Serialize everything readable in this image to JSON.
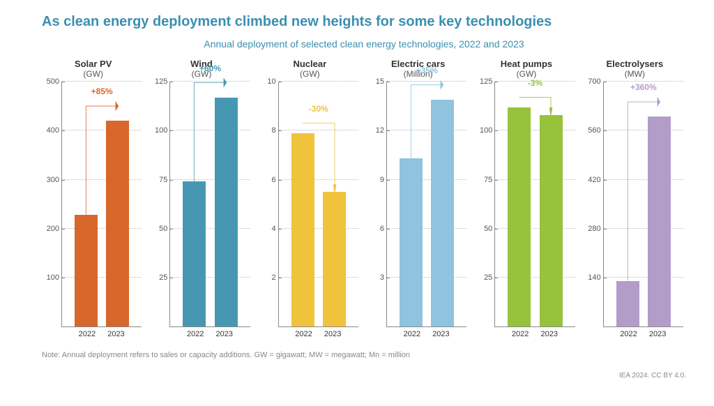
{
  "title": "As clean energy deployment climbed new heights for some key technologies",
  "subtitle": "Annual deployment of selected clean energy technologies, 2022 and 2023",
  "footnote": "Note: Annual deployment refers to sales or capacity additions. GW = gigawatt; MW = megawatt; Mn = million",
  "attribution": "IEA 2024. CC BY 4.0.",
  "background_color": "#ffffff",
  "grid_color": "#bbbbbb",
  "axis_color": "#888888",
  "title_color": "#3b8fb0",
  "text_color": "#333333",
  "font_family": "Arial, Helvetica, sans-serif",
  "title_fontsize": 20,
  "subtitle_fontsize": 14,
  "panel_title_fontsize": 13,
  "tick_fontsize": 11,
  "change_fontsize": 12,
  "xlabels": [
    "2022",
    "2023"
  ],
  "panels": [
    {
      "name": "Solar PV",
      "unit": "(GW)",
      "ymin": 0,
      "ymax": 500,
      "ytick_step": 100,
      "values": [
        228,
        420
      ],
      "bar_colors": [
        "#d8672b",
        "#d8672b"
      ],
      "change_label": "+85%",
      "change_color": "#d8672b",
      "arrow_dir": "up"
    },
    {
      "name": "Wind",
      "unit": "(GW)",
      "ymin": 0,
      "ymax": 125,
      "ytick_step": 25,
      "values": [
        74,
        117
      ],
      "bar_colors": [
        "#4698b2",
        "#4698b2"
      ],
      "change_label": "+60%",
      "change_color": "#4698b2",
      "arrow_dir": "up"
    },
    {
      "name": "Nuclear",
      "unit": "(GW)",
      "ymin": 0,
      "ymax": 10,
      "ytick_step": 2,
      "values": [
        7.9,
        5.5
      ],
      "bar_colors": [
        "#f0c33c",
        "#f0c33c"
      ],
      "change_label": "-30%",
      "change_color": "#f0c33c",
      "arrow_dir": "down"
    },
    {
      "name": "Electric cars",
      "unit": "(Million)",
      "ymin": 0,
      "ymax": 15,
      "ytick_step": 3,
      "values": [
        10.3,
        13.9
      ],
      "bar_colors": [
        "#8fc3de",
        "#8fc3de"
      ],
      "change_label": "+35%",
      "change_color": "#8fc3de",
      "arrow_dir": "up"
    },
    {
      "name": "Heat pumps",
      "unit": "(GW)",
      "ymin": 0,
      "ymax": 125,
      "ytick_step": 25,
      "values": [
        112,
        108
      ],
      "bar_colors": [
        "#97c23c",
        "#97c23c"
      ],
      "change_label": "-3%",
      "change_color": "#97c23c",
      "arrow_dir": "down"
    },
    {
      "name": "Electrolysers",
      "unit": "(MW)",
      "ymin": 0,
      "ymax": 700,
      "ytick_step": 140,
      "values": [
        130,
        600
      ],
      "bar_colors": [
        "#b29dc9",
        "#b29dc9"
      ],
      "change_label": "+360%",
      "change_color": "#b29dc9",
      "arrow_dir": "up"
    }
  ]
}
